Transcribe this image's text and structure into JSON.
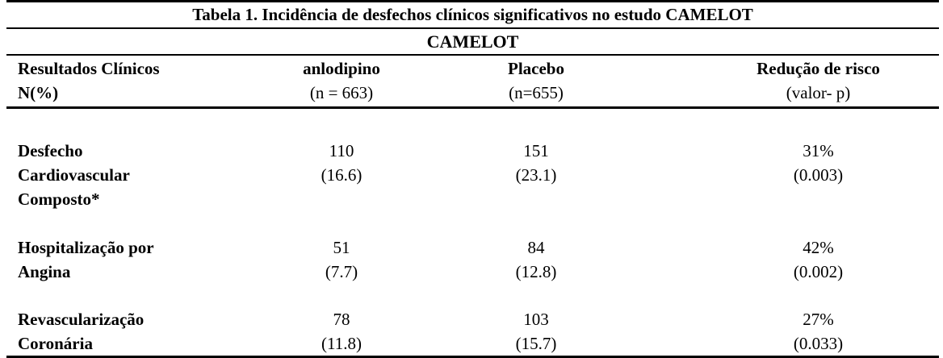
{
  "colors": {
    "background": "#ffffff",
    "text": "#000000",
    "rule": "#000000"
  },
  "table": {
    "title": "Tabela 1. Incidência de desfechos clínicos significativos no estudo CAMELOT",
    "subtitle": "CAMELOT",
    "header": {
      "col1": {
        "line1": "Resultados Clínicos",
        "line2": "N(%)"
      },
      "col2": {
        "line1": "anlodipino",
        "line2": "(n = 663)"
      },
      "col3": {
        "line1": "Placebo",
        "line2": "(n=655)"
      },
      "col4": {
        "line1": "Redução de risco",
        "line2": "(valor- p)"
      }
    },
    "rows": [
      {
        "name_lines": [
          "Desfecho",
          "Cardiovascular",
          "Composto*"
        ],
        "anlodipino": {
          "n": "110",
          "pct": "(16.6)"
        },
        "placebo": {
          "n": "151",
          "pct": "(23.1)"
        },
        "risk": {
          "value": "31%",
          "p": "(0.003)"
        }
      },
      {
        "name_lines": [
          "Hospitalização por",
          "Angina"
        ],
        "anlodipino": {
          "n": "51",
          "pct": "(7.7)"
        },
        "placebo": {
          "n": "84",
          "pct": "(12.8)"
        },
        "risk": {
          "value": "42%",
          "p": "(0.002)"
        }
      },
      {
        "name_lines": [
          "Revascularização",
          "Coronária"
        ],
        "anlodipino": {
          "n": "78",
          "pct": "(11.8)"
        },
        "placebo": {
          "n": "103",
          "pct": "(15.7)"
        },
        "risk": {
          "value": "27%",
          "p": "(0.033)"
        }
      }
    ]
  }
}
